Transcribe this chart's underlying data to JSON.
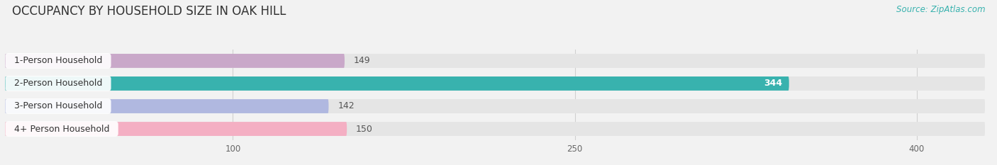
{
  "title": "OCCUPANCY BY HOUSEHOLD SIZE IN OAK HILL",
  "source": "Source: ZipAtlas.com",
  "categories": [
    "1-Person Household",
    "2-Person Household",
    "3-Person Household",
    "4+ Person Household"
  ],
  "values": [
    149,
    344,
    142,
    150
  ],
  "bar_colors": [
    "#c9a8c9",
    "#38b2ae",
    "#b0b8e0",
    "#f4afc3"
  ],
  "bar_label_colors": [
    "#444444",
    "#ffffff",
    "#444444",
    "#444444"
  ],
  "xlim": [
    0,
    430
  ],
  "xticks": [
    100,
    250,
    400
  ],
  "background_color": "#f2f2f2",
  "bar_background_color": "#e5e5e5",
  "title_fontsize": 12,
  "source_fontsize": 8.5,
  "label_fontsize": 9,
  "value_fontsize": 9
}
